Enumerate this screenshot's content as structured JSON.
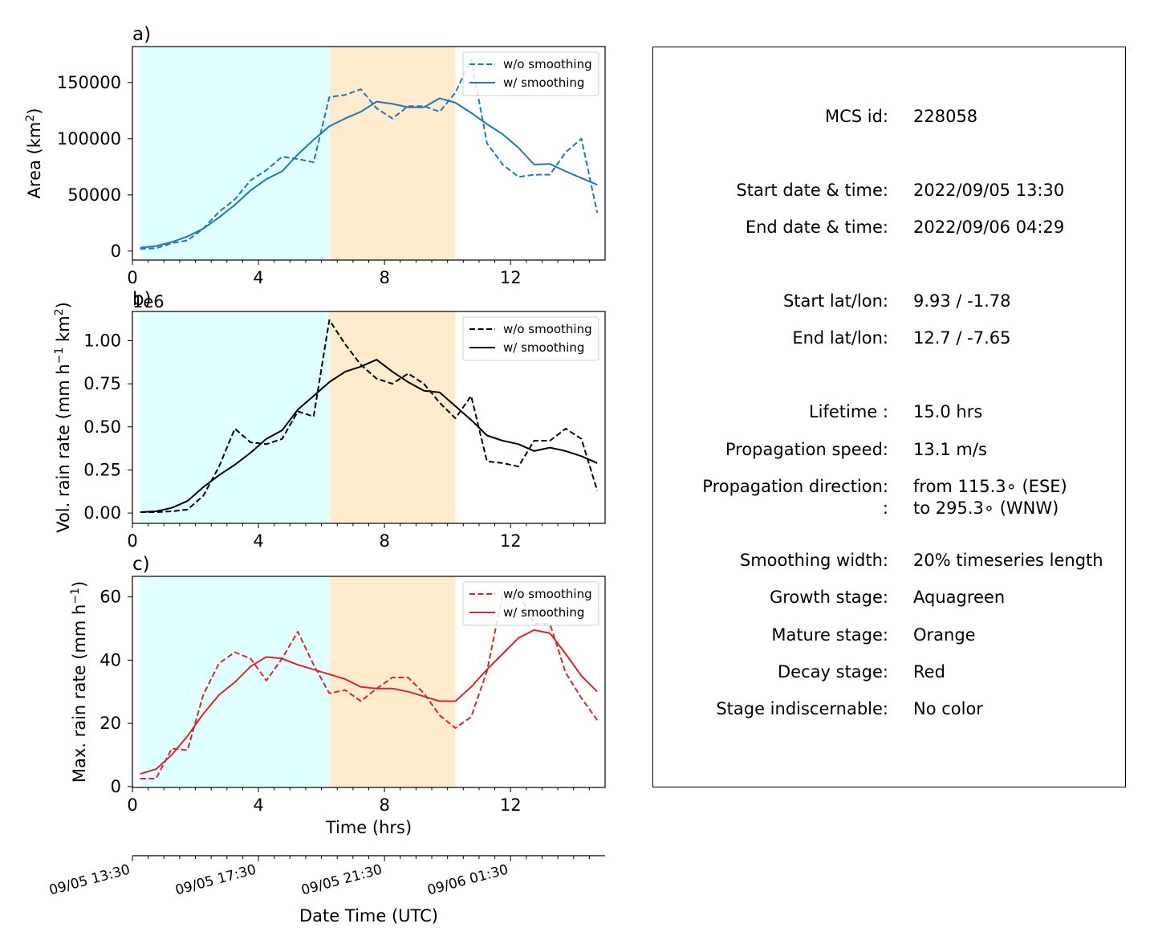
{
  "chart_data": [
    {
      "type": "line",
      "panel_label": "a)",
      "ylabel": "Area  (km²)",
      "xlim": [
        0,
        15
      ],
      "ylim": [
        -8000,
        182000
      ],
      "xticks": [
        0,
        4,
        8,
        12
      ],
      "yticks": [
        0,
        50000,
        100000,
        150000
      ],
      "ytick_labels": [
        "0",
        "50000",
        "100000",
        "150000"
      ],
      "color": "#1f77b4",
      "stage_spans": [
        {
          "stage": "growth",
          "x0": 0.25,
          "x1": 6.25,
          "color": "#e0ffff"
        },
        {
          "stage": "mature",
          "x0": 6.25,
          "x1": 10.25,
          "color": "#ffebcd"
        }
      ],
      "legend": {
        "placement": "upper right",
        "entries": [
          "w/o smoothing",
          "w/ smoothing"
        ]
      },
      "x": [
        0.25,
        0.75,
        1.25,
        1.75,
        2.25,
        2.75,
        3.25,
        3.75,
        4.25,
        4.75,
        5.25,
        5.75,
        6.25,
        6.75,
        7.25,
        7.75,
        8.25,
        8.75,
        9.25,
        9.75,
        10.25,
        10.75,
        11.25,
        11.75,
        12.25,
        12.75,
        13.25,
        13.75,
        14.25,
        14.75
      ],
      "series": [
        {
          "name": "w/o smoothing",
          "style": "dashed",
          "values": [
            2000,
            2500,
            7000,
            9500,
            20000,
            35000,
            46000,
            63000,
            72000,
            84000,
            82000,
            79000,
            137000,
            139000,
            144000,
            127000,
            118000,
            129000,
            129000,
            124000,
            141000,
            171000,
            96000,
            77000,
            66000,
            68000,
            68000,
            88000,
            100000,
            34000
          ]
        },
        {
          "name": "w/ smoothing",
          "style": "solid",
          "values": [
            3000,
            4500,
            8000,
            13000,
            20000,
            30000,
            41000,
            54000,
            64000,
            71000,
            86000,
            99000,
            111000,
            118000,
            124000,
            133000,
            131000,
            128000,
            128000,
            136000,
            132000,
            123000,
            113000,
            104000,
            92000,
            77000,
            77500,
            71000,
            65000,
            59000
          ]
        }
      ]
    },
    {
      "type": "line",
      "panel_label": "b)",
      "offset_label": "1e6",
      "ylabel": "Vol. rain rate (mm h⁻¹ km²)",
      "xlim": [
        0,
        15
      ],
      "ylim": [
        -0.06,
        1.17
      ],
      "xticks": [
        0,
        4,
        8,
        12
      ],
      "yticks": [
        0,
        0.25,
        0.5,
        0.75,
        1.0
      ],
      "ytick_labels": [
        "0.00",
        "0.25",
        "0.50",
        "0.75",
        "1.00"
      ],
      "color": "#000000",
      "stage_spans": [
        {
          "stage": "growth",
          "x0": 0.25,
          "x1": 6.25,
          "color": "#e0ffff"
        },
        {
          "stage": "mature",
          "x0": 6.25,
          "x1": 10.25,
          "color": "#ffebcd"
        }
      ],
      "legend": {
        "placement": "upper right",
        "entries": [
          "w/o smoothing",
          "w/ smoothing"
        ]
      },
      "x": [
        0.25,
        0.75,
        1.25,
        1.75,
        2.25,
        2.75,
        3.25,
        3.75,
        4.25,
        4.75,
        5.25,
        5.75,
        6.25,
        6.75,
        7.25,
        7.75,
        8.25,
        8.75,
        9.25,
        9.75,
        10.25,
        10.75,
        11.25,
        11.75,
        12.25,
        12.75,
        13.25,
        13.75,
        14.25,
        14.75
      ],
      "series": [
        {
          "name": "w/o smoothing",
          "style": "dashed",
          "values": [
            0.005,
            0.005,
            0.01,
            0.02,
            0.1,
            0.27,
            0.49,
            0.41,
            0.4,
            0.43,
            0.59,
            0.56,
            1.12,
            0.98,
            0.86,
            0.78,
            0.75,
            0.81,
            0.75,
            0.64,
            0.55,
            0.68,
            0.3,
            0.29,
            0.27,
            0.42,
            0.42,
            0.49,
            0.43,
            0.13
          ]
        },
        {
          "name": "w/ smoothing",
          "style": "solid",
          "values": [
            0.005,
            0.01,
            0.03,
            0.07,
            0.15,
            0.22,
            0.28,
            0.35,
            0.43,
            0.48,
            0.6,
            0.68,
            0.76,
            0.82,
            0.85,
            0.89,
            0.82,
            0.76,
            0.71,
            0.7,
            0.62,
            0.54,
            0.45,
            0.42,
            0.4,
            0.36,
            0.38,
            0.36,
            0.33,
            0.29
          ]
        }
      ]
    },
    {
      "type": "line",
      "panel_label": "c)",
      "ylabel": "Max. rain rate  (mm h⁻¹)",
      "xlabel": "Time (hrs)",
      "xlim": [
        0,
        15
      ],
      "ylim": [
        -0.3,
        66.5
      ],
      "xticks": [
        0,
        4,
        8,
        12
      ],
      "yticks": [
        0,
        20,
        40,
        60
      ],
      "ytick_labels": [
        "0",
        "20",
        "40",
        "60"
      ],
      "color": "#d62728",
      "stage_spans": [
        {
          "stage": "growth",
          "x0": 0.25,
          "x1": 6.25,
          "color": "#e0ffff"
        },
        {
          "stage": "mature",
          "x0": 6.25,
          "x1": 10.25,
          "color": "#ffebcd"
        }
      ],
      "legend": {
        "placement": "upper right",
        "entries": [
          "w/o smoothing",
          "w/ smoothing"
        ]
      },
      "x": [
        0.25,
        0.75,
        1.25,
        1.75,
        2.25,
        2.75,
        3.25,
        3.75,
        4.25,
        4.75,
        5.25,
        5.75,
        6.25,
        6.75,
        7.25,
        7.75,
        8.25,
        8.75,
        9.25,
        9.75,
        10.25,
        10.75,
        11.25,
        11.75,
        12.25,
        12.75,
        13.25,
        13.75,
        14.25,
        14.75
      ],
      "series": [
        {
          "name": "w/o smoothing",
          "style": "dashed",
          "values": [
            2.5,
            2.5,
            12,
            11.5,
            29,
            39,
            42.5,
            40.5,
            33.5,
            40.5,
            49,
            38.5,
            29.5,
            30.5,
            27,
            31,
            34.5,
            34.5,
            29.5,
            22.5,
            18.5,
            22,
            36.5,
            61,
            61.5,
            51.5,
            51.5,
            36,
            28,
            21
          ]
        },
        {
          "name": "w/ smoothing",
          "style": "solid",
          "values": [
            4,
            5.5,
            10,
            16,
            23,
            29,
            33,
            38,
            41,
            40.5,
            38.5,
            37,
            35.5,
            34,
            31.5,
            31,
            31,
            30,
            28.5,
            27,
            27,
            31.5,
            37,
            42,
            47,
            49.5,
            48.5,
            42,
            35,
            30
          ]
        }
      ]
    },
    {
      "type": "line",
      "role": "secondary date axis",
      "xlabel": "Date Time (UTC)",
      "xlim": [
        0,
        15
      ],
      "tick_labels": [
        {
          "x": 0,
          "label": "09/05 13:30"
        },
        {
          "x": 4,
          "label": "09/05 17:30"
        },
        {
          "x": 8,
          "label": "09/05 21:30"
        },
        {
          "x": 12,
          "label": "09/06 01:30"
        }
      ],
      "minor_ticks_every_hrs": 0.5
    }
  ],
  "info": {
    "rows": [
      {
        "label": "MCS id:",
        "value": "228058"
      },
      {
        "label": "Start date & time:",
        "value": "2022/09/05 13:30"
      },
      {
        "label": "End date & time:",
        "value": "2022/09/06 04:29"
      },
      {
        "label": "Start lat/lon:",
        "value": "9.93 / -1.78"
      },
      {
        "label": "End lat/lon:",
        "value": "12.7 / -7.65"
      },
      {
        "label": "Lifetime :",
        "value": "15.0 hrs"
      },
      {
        "label": "Propagation speed:",
        "value": "13.1 m/s"
      },
      {
        "label": "Propagation direction:",
        "value": "from 115.3∘ (ESE)"
      },
      {
        "label": ":",
        "value": "to   295.3∘ (WNW)"
      },
      {
        "label": "Smoothing width:",
        "value": "20% timeseries length"
      },
      {
        "label": "Growth stage:",
        "value": "Aquagreen"
      },
      {
        "label": "Mature stage:",
        "value": "Orange"
      },
      {
        "label": "Decay stage:",
        "value": "Red"
      },
      {
        "label": "Stage indiscernable:",
        "value": "No color"
      }
    ]
  }
}
